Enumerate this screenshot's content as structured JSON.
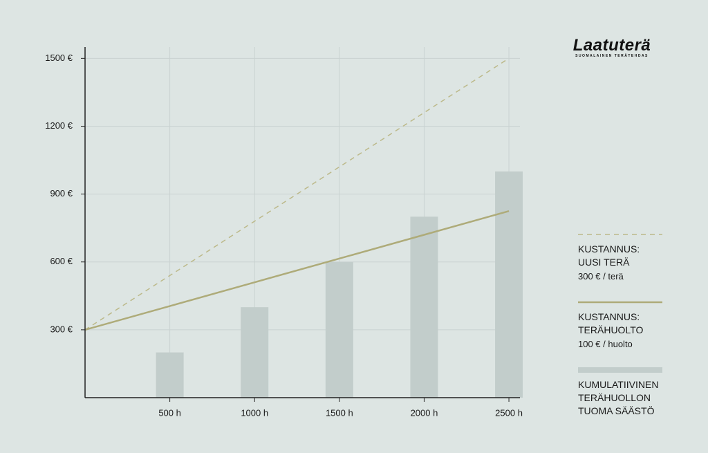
{
  "chart_data": {
    "type": "bar",
    "logo": {
      "name": "Laatuterä",
      "tagline": "SUOMALAINEN TERÄTEHDAS"
    },
    "xlim": [
      0,
      2565
    ],
    "ylim": [
      0,
      1550
    ],
    "xticks": [
      {
        "value": 500,
        "label": "500 h"
      },
      {
        "value": 1000,
        "label": "1000 h"
      },
      {
        "value": 1500,
        "label": "1500 h"
      },
      {
        "value": 2000,
        "label": "2000 h"
      },
      {
        "value": 2500,
        "label": "2500 h"
      }
    ],
    "yticks": [
      {
        "value": 300,
        "label": "300 €"
      },
      {
        "value": 600,
        "label": "600 €"
      },
      {
        "value": 900,
        "label": "900 €"
      },
      {
        "value": 1200,
        "label": "1200 €"
      },
      {
        "value": 1500,
        "label": "1500 €"
      }
    ],
    "grid": true,
    "series": [
      {
        "name": "KUSTANNUS:\nUUSI TERÄ",
        "note": "300 € / terä",
        "type": "line",
        "dashed": true,
        "color": "#bcb98a",
        "x": [
          0,
          500,
          1000,
          1500,
          2000,
          2500
        ],
        "values": [
          300,
          540,
          780,
          1020,
          1260,
          1500
        ]
      },
      {
        "name": "KUSTANNUS:\nTERÄHUOLTO",
        "note": "100 € / huolto",
        "type": "line",
        "dashed": false,
        "color": "#aeab79",
        "x": [
          0,
          500,
          1000,
          1500,
          2000,
          2500
        ],
        "values": [
          300,
          405,
          510,
          615,
          720,
          825
        ]
      },
      {
        "name": "KUMULATIIVINEN\nTERÄHUOLLON\nTUOMA SÄÄSTÖ",
        "type": "bar",
        "color": "#c2cdcb",
        "x": [
          500,
          1000,
          1500,
          2000,
          2500
        ],
        "values": [
          200,
          400,
          600,
          800,
          1000
        ]
      }
    ]
  }
}
